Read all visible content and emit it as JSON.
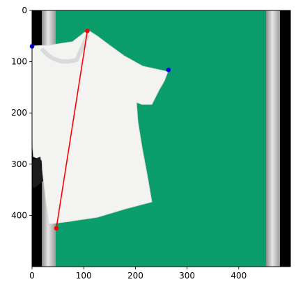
{
  "chart_data": {
    "type": "scatter",
    "title": "",
    "xlabel": "",
    "ylabel": "",
    "xlim": [
      0,
      500
    ],
    "ylim": [
      500,
      0
    ],
    "y_axis_inverted": true,
    "grid": false,
    "legend": "none",
    "background_image": "photo of a white t-shirt laid flat on a green mat between black and grey edges",
    "x_ticks": [
      "0",
      "100",
      "200",
      "300",
      "400"
    ],
    "x_tick_values": [
      0,
      100,
      200,
      300,
      400
    ],
    "y_ticks": [
      "0",
      "100",
      "200",
      "300",
      "400"
    ],
    "y_tick_values": [
      0,
      100,
      200,
      300,
      400
    ],
    "series": [
      {
        "kind": "line",
        "color": "#ff0000",
        "points": [
          [
            107,
            40
          ],
          [
            47,
            425
          ]
        ]
      },
      {
        "kind": "points",
        "color": "#0000ff",
        "points": [
          [
            0,
            70
          ],
          [
            264,
            116
          ]
        ]
      }
    ],
    "colors": {
      "mat_green": "#0a9e6c",
      "edge_black": "#000000",
      "edge_grey": "#c9c9c9",
      "shirt_white": "#f2f2f0"
    }
  }
}
